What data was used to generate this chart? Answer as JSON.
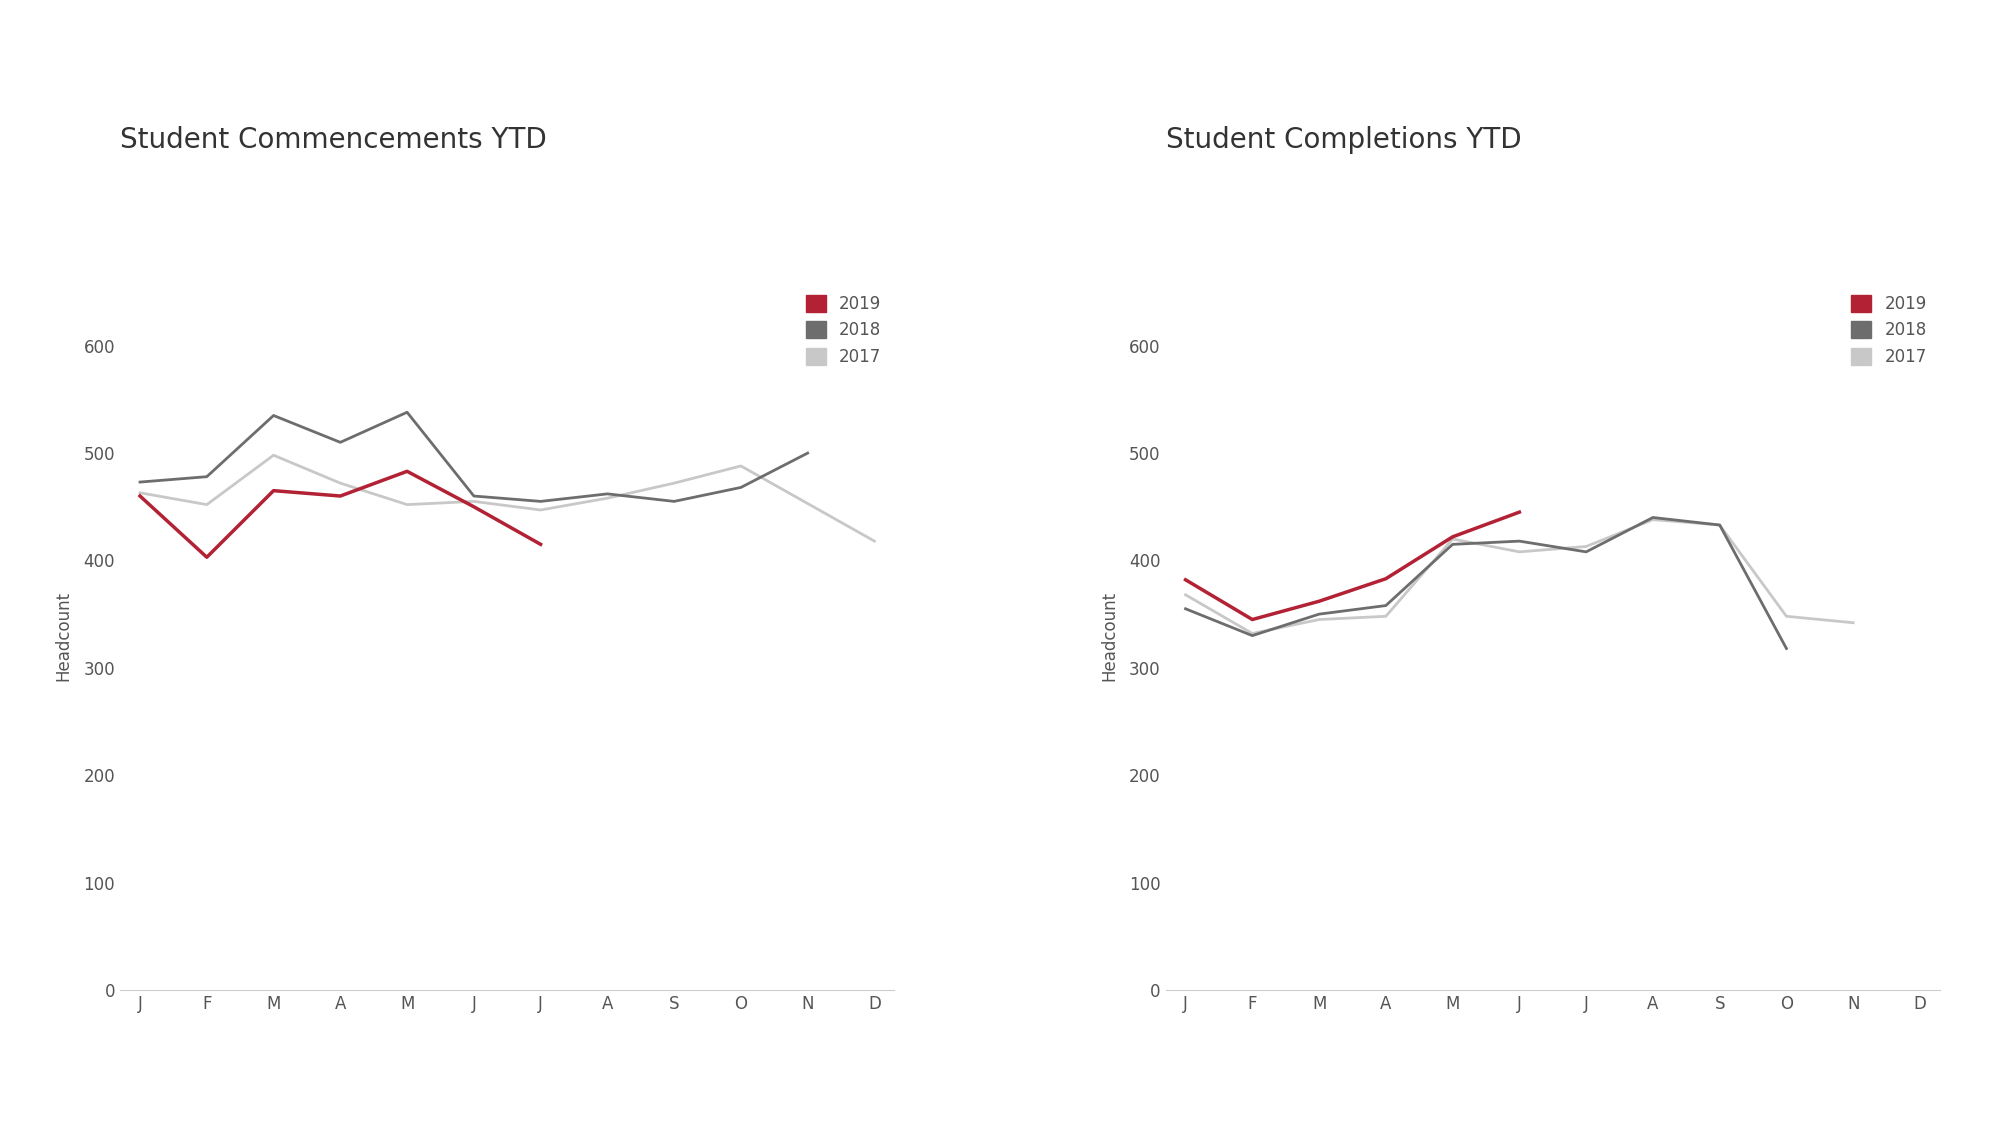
{
  "months": [
    "J",
    "F",
    "M",
    "A",
    "M",
    "J",
    "J",
    "A",
    "S",
    "O",
    "N",
    "D"
  ],
  "chart1_title": "Student Commencements YTD",
  "chart1_2019": [
    460,
    403,
    465,
    460,
    483,
    450,
    415,
    null,
    null,
    null,
    null,
    null
  ],
  "chart1_2018": [
    473,
    478,
    535,
    510,
    538,
    460,
    455,
    462,
    455,
    468,
    500,
    null
  ],
  "chart1_2017": [
    463,
    452,
    498,
    472,
    452,
    455,
    447,
    458,
    472,
    488,
    453,
    418
  ],
  "chart2_title": "Student Completions YTD",
  "chart2_2019": [
    382,
    345,
    362,
    383,
    422,
    445,
    null,
    null,
    null,
    null,
    null,
    null
  ],
  "chart2_2018": [
    355,
    330,
    350,
    358,
    415,
    418,
    408,
    440,
    433,
    318,
    null,
    null
  ],
  "chart2_2017": [
    368,
    332,
    345,
    348,
    420,
    408,
    413,
    438,
    433,
    348,
    342,
    null
  ],
  "color_2019": "#b22234",
  "color_2018": "#6d6d6d",
  "color_2017": "#c8c8c8",
  "ylabel": "Headcount",
  "ylim": [
    0,
    660
  ],
  "yticks": [
    0,
    100,
    200,
    300,
    400,
    500,
    600
  ],
  "background_color": "#ffffff",
  "title_fontsize": 20,
  "tick_fontsize": 12,
  "legend_fontsize": 12,
  "ylabel_fontsize": 12
}
